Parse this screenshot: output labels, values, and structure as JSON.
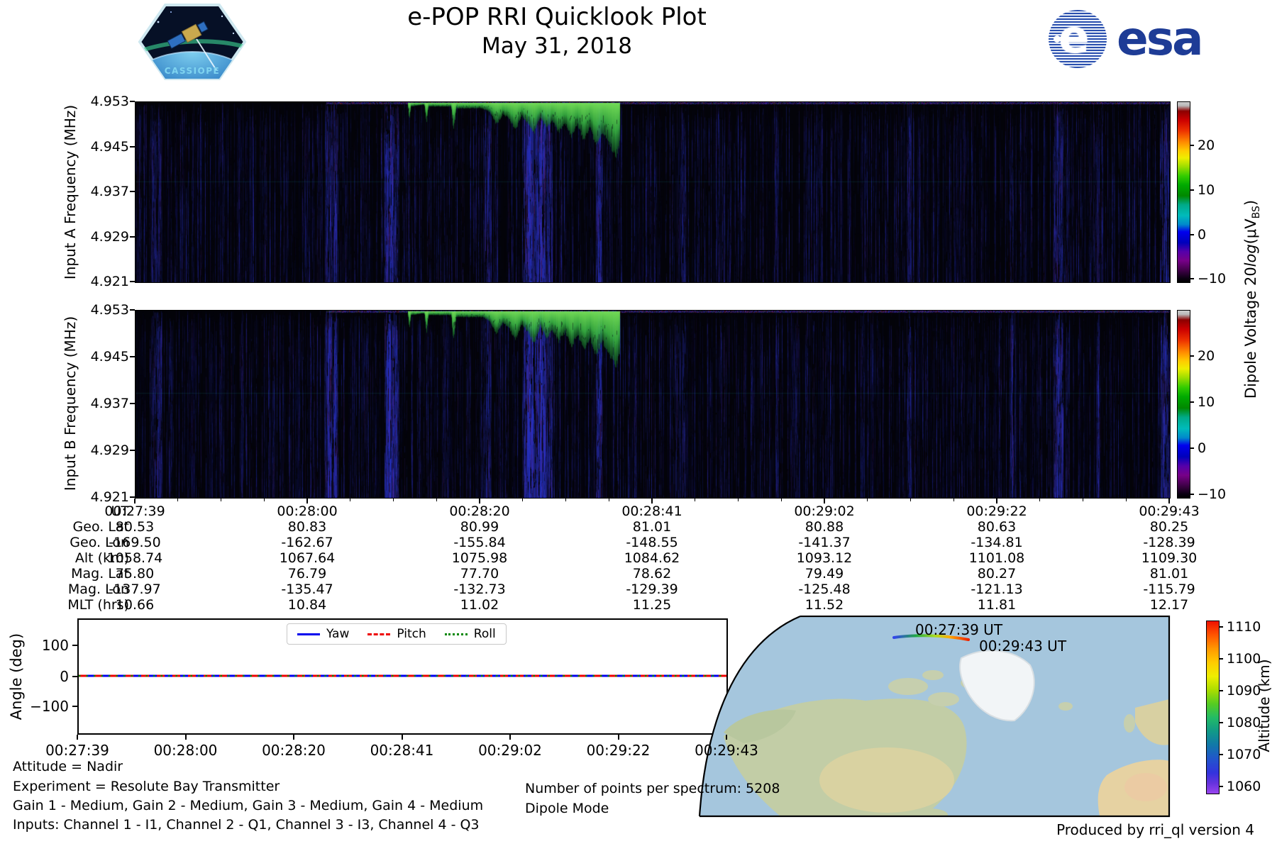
{
  "header": {
    "title": "e-POP RRI Quicklook Plot",
    "date": "May 31, 2018",
    "cassiope_label": "CASSIOPE",
    "esa_label": "esa"
  },
  "spectrograms": {
    "panel_a_ylabel": "Input A Frequency (MHz)",
    "panel_b_ylabel": "Input B Frequency (MHz)",
    "yticks": [
      "4.953",
      "4.945",
      "4.937",
      "4.929",
      "4.921"
    ],
    "colorbar": {
      "label_text1": "Dipole Voltage 20",
      "label_log": "log",
      "label_text2": "(μV",
      "label_sub": "BS",
      "label_text3": ")",
      "ticks": [
        "20",
        "10",
        "0",
        "−10"
      ]
    }
  },
  "ephemeris_table": {
    "row_labels": [
      "UT",
      "Geo. Lat",
      "Geo. Lon",
      "Alt (km)",
      "Mag. Lat",
      "Mag. Lon",
      "MLT (hrs)"
    ],
    "columns": [
      [
        "00:27:39",
        "80.53",
        "-169.50",
        "1058.74",
        "75.80",
        "-137.97",
        "10.66"
      ],
      [
        "00:28:00",
        "80.83",
        "-162.67",
        "1067.64",
        "76.79",
        "-135.47",
        "10.84"
      ],
      [
        "00:28:20",
        "80.99",
        "-155.84",
        "1075.98",
        "77.70",
        "-132.73",
        "11.02"
      ],
      [
        "00:28:41",
        "81.01",
        "-148.55",
        "1084.62",
        "78.62",
        "-129.39",
        "11.25"
      ],
      [
        "00:29:02",
        "80.88",
        "-141.37",
        "1093.12",
        "79.49",
        "-125.48",
        "11.52"
      ],
      [
        "00:29:22",
        "80.63",
        "-134.81",
        "1101.08",
        "80.27",
        "-121.13",
        "11.81"
      ],
      [
        "00:29:43",
        "80.25",
        "-128.39",
        "1109.30",
        "81.01",
        "-115.79",
        "12.17"
      ]
    ]
  },
  "angle_plot": {
    "ylabel": "Angle (deg)",
    "yticks": [
      "100",
      "0",
      "−100"
    ],
    "xticks": [
      "00:27:39",
      "00:28:00",
      "00:28:20",
      "00:28:41",
      "00:29:02",
      "00:29:22",
      "00:29:43"
    ],
    "legend": [
      {
        "label": "Yaw",
        "color": "#0000ee",
        "style": "solid"
      },
      {
        "label": "Pitch",
        "color": "#ee0000",
        "style": "dashed"
      },
      {
        "label": "Roll",
        "color": "#008800",
        "style": "dotted"
      }
    ]
  },
  "map": {
    "start_label": "00:27:39 UT",
    "end_label": "00:29:43 UT",
    "colorbar_label": "Altitude (km)",
    "colorbar_ticks": [
      "1110",
      "1100",
      "1090",
      "1080",
      "1070",
      "1060"
    ]
  },
  "footer": {
    "attitude": "Attitude = Nadir",
    "experiment": "Experiment = Resolute Bay Transmitter",
    "gains": "Gain 1 - Medium, Gain 2 - Medium, Gain 3 - Medium, Gain 4 - Medium",
    "inputs": "Inputs: Channel 1 - I1, Channel 2 - Q1, Channel 3 - I3, Channel 4 - Q3",
    "points": "Number of points per spectrum: 5208",
    "mode": "Dipole Mode",
    "produced": "Produced by rri_ql version 4"
  },
  "chart_data": [
    {
      "type": "heatmap",
      "id": "spectrogram_input_a",
      "ylabel": "Input A Frequency (MHz)",
      "x_range_ut": [
        "00:27:39",
        "00:29:43"
      ],
      "y_range_mhz": [
        4.921,
        4.953
      ],
      "y_ticks_mhz": [
        4.953,
        4.945,
        4.937,
        4.929,
        4.921
      ],
      "colorbar": {
        "label": "Dipole Voltage 20log(μV_BS)",
        "ticks": [
          20,
          10,
          0,
          -10
        ],
        "value_range": [
          -12,
          30
        ],
        "colormap": "nipy_spectral"
      },
      "description": "Mostly near-noise-floor (black/dark blue vertical streaks); strong narrow transmitter signal (green) hugging 4.953 MHz descending to ~4.945 MHz between ~00:28:10 and ~00:28:45",
      "signal_trace_frac": [
        [
          0.263,
          0.01
        ],
        [
          0.2645,
          0.1
        ],
        [
          0.266,
          0.02
        ],
        [
          0.279,
          0.01
        ],
        [
          0.281,
          0.12
        ],
        [
          0.283,
          0.02
        ],
        [
          0.305,
          0.02
        ],
        [
          0.307,
          0.16
        ],
        [
          0.31,
          0.03
        ],
        [
          0.335,
          0.03
        ],
        [
          0.342,
          0.05
        ],
        [
          0.349,
          0.12
        ],
        [
          0.355,
          0.06
        ],
        [
          0.361,
          0.09
        ],
        [
          0.367,
          0.15
        ],
        [
          0.373,
          0.07
        ],
        [
          0.379,
          0.11
        ],
        [
          0.385,
          0.17
        ],
        [
          0.391,
          0.08
        ],
        [
          0.397,
          0.14
        ],
        [
          0.403,
          0.1
        ],
        [
          0.409,
          0.16
        ],
        [
          0.415,
          0.11
        ],
        [
          0.421,
          0.19
        ],
        [
          0.427,
          0.12
        ],
        [
          0.433,
          0.21
        ],
        [
          0.439,
          0.14
        ],
        [
          0.445,
          0.23
        ],
        [
          0.451,
          0.16
        ],
        [
          0.456,
          0.2
        ],
        [
          0.46,
          0.25
        ],
        [
          0.464,
          0.3
        ],
        [
          0.468,
          0.22
        ]
      ],
      "noise_bands_frac": [
        [
          0.02,
          0.006,
          0.18
        ],
        [
          0.187,
          0.004,
          0.35
        ],
        [
          0.193,
          0.003,
          0.3
        ],
        [
          0.2455,
          0.005,
          0.5
        ],
        [
          0.252,
          0.003,
          0.3
        ],
        [
          0.34,
          0.004,
          0.2
        ],
        [
          0.381,
          0.006,
          0.65
        ],
        [
          0.392,
          0.005,
          0.6
        ],
        [
          0.4,
          0.003,
          0.35
        ],
        [
          0.448,
          0.003,
          0.4
        ],
        [
          0.53,
          0.002,
          0.2
        ],
        [
          0.62,
          0.002,
          0.15
        ],
        [
          0.748,
          0.003,
          0.2
        ],
        [
          0.847,
          0.002,
          0.2
        ],
        [
          0.892,
          0.005,
          0.3
        ],
        [
          0.93,
          0.002,
          0.15
        ],
        [
          0.995,
          0.005,
          0.3
        ]
      ],
      "hline_frac": 0.44
    },
    {
      "type": "heatmap",
      "id": "spectrogram_input_b",
      "ylabel": "Input B Frequency (MHz)",
      "x_range_ut": [
        "00:27:39",
        "00:29:43"
      ],
      "y_range_mhz": [
        4.921,
        4.953
      ],
      "y_ticks_mhz": [
        4.953,
        4.945,
        4.937,
        4.929,
        4.921
      ],
      "colorbar": {
        "label": "Dipole Voltage 20log(μV_BS)",
        "ticks": [
          20,
          10,
          0,
          -10
        ],
        "value_range": [
          -12,
          30
        ],
        "colormap": "nipy_spectral"
      },
      "description": "Same signal as Input A, slightly brighter blue interference bands",
      "band_boost": 1.3,
      "hline_frac": 0.44
    },
    {
      "type": "line",
      "id": "attitude_angles",
      "ylabel": "Angle (deg)",
      "ylim": [
        -180,
        180
      ],
      "x": [
        "00:27:39",
        "00:28:00",
        "00:28:20",
        "00:28:41",
        "00:29:02",
        "00:29:22",
        "00:29:43"
      ],
      "series": [
        {
          "name": "Yaw",
          "color": "#0000ee",
          "style": "solid",
          "values": [
            0,
            0,
            0,
            0,
            0,
            0,
            0
          ]
        },
        {
          "name": "Pitch",
          "color": "#ee0000",
          "style": "dashed",
          "values": [
            0,
            0,
            0,
            0,
            0,
            0,
            0
          ]
        },
        {
          "name": "Roll",
          "color": "#008800",
          "style": "dotted",
          "values": [
            0,
            0,
            0,
            0,
            0,
            0,
            0
          ]
        }
      ],
      "legend_position": "upper center"
    },
    {
      "type": "table",
      "id": "ephemeris",
      "row_labels": [
        "UT",
        "Geo. Lat",
        "Geo. Lon",
        "Alt (km)",
        "Mag. Lat",
        "Mag. Lon",
        "MLT (hrs)"
      ],
      "columns": [
        [
          "00:27:39",
          "80.53",
          "-169.50",
          "1058.74",
          "75.80",
          "-137.97",
          "10.66"
        ],
        [
          "00:28:00",
          "80.83",
          "-162.67",
          "1067.64",
          "76.79",
          "-135.47",
          "10.84"
        ],
        [
          "00:28:20",
          "80.99",
          "-155.84",
          "1075.98",
          "77.70",
          "-132.73",
          "11.02"
        ],
        [
          "00:28:41",
          "81.01",
          "-148.55",
          "1084.62",
          "78.62",
          "-129.39",
          "11.25"
        ],
        [
          "00:29:02",
          "80.88",
          "-141.37",
          "1093.12",
          "79.49",
          "-125.48",
          "11.52"
        ],
        [
          "00:29:22",
          "80.63",
          "-134.81",
          "1101.08",
          "80.27",
          "-121.13",
          "11.81"
        ],
        [
          "00:29:43",
          "80.25",
          "-128.39",
          "1109.30",
          "81.01",
          "-115.79",
          "12.17"
        ]
      ]
    },
    {
      "type": "map",
      "id": "ground_track",
      "region": "North Atlantic / North America, north polar pass",
      "track_start": "00:27:39 UT",
      "track_end": "00:29:43 UT",
      "altitude_range_km": [
        1058.74,
        1109.3
      ],
      "colorbar": {
        "label": "Altitude (km)",
        "ticks": [
          1110,
          1100,
          1090,
          1080,
          1070,
          1060
        ],
        "colormap": "rainbow"
      }
    }
  ]
}
